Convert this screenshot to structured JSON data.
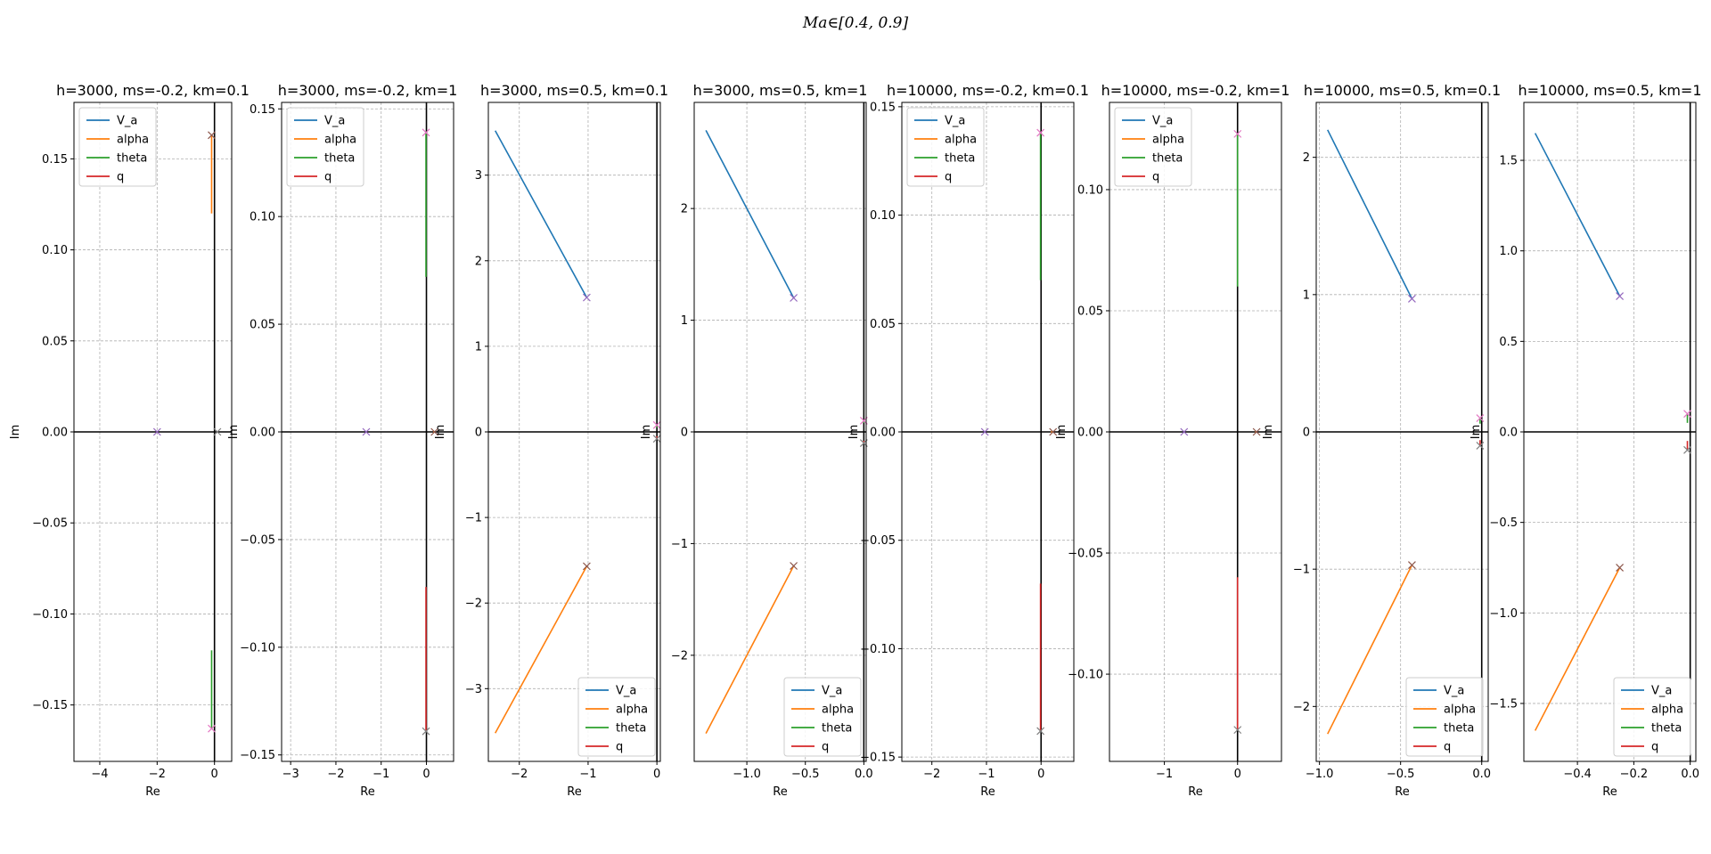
{
  "figure": {
    "suptitle": "Ma∈[0.4, 0.9]"
  },
  "chart_data": [
    {
      "type": "line",
      "title": "h=3000, ms=-0.2, km=0.1",
      "xlabel": "Re",
      "ylabel": "Im",
      "xlim": [
        -4.9,
        0.6
      ],
      "ylim": [
        -0.181,
        0.181
      ],
      "xticks": [
        -4,
        -2,
        0
      ],
      "yticks": [
        -0.15,
        -0.1,
        -0.05,
        0.0,
        0.05,
        0.1,
        0.15
      ],
      "ytick_labels": [
        "−0.15",
        "−0.10",
        "−0.05",
        "0.00",
        "0.05",
        "0.10",
        "0.15"
      ],
      "xtick_labels": [
        "−4",
        "−2",
        "0"
      ],
      "legend_position": "upper left",
      "series": [
        {
          "name": "V_a",
          "color": "#1f77b4",
          "x": [
            -2.02,
            -2.0
          ],
          "y": [
            0.0,
            0.0
          ]
        },
        {
          "name": "alpha",
          "color": "#ff7f0e",
          "x": [
            -0.1,
            -0.1
          ],
          "y": [
            0.12,
            0.163
          ]
        },
        {
          "name": "theta",
          "color": "#2ca02c",
          "x": [
            -0.1,
            -0.1
          ],
          "y": [
            -0.12,
            -0.163
          ]
        },
        {
          "name": "q",
          "color": "#d62728",
          "x": [
            0.12,
            0.1
          ],
          "y": [
            0.0,
            0.0
          ]
        }
      ],
      "markers": [
        {
          "x": -2.0,
          "y": 0.0,
          "color": "#9467bd"
        },
        {
          "x": -0.1,
          "y": 0.163,
          "color": "#8c564b"
        },
        {
          "x": -0.1,
          "y": -0.163,
          "color": "#e377c2"
        },
        {
          "x": 0.1,
          "y": 0.0,
          "color": "#7f7f7f"
        }
      ]
    },
    {
      "type": "line",
      "title": "h=3000, ms=-0.2, km=1",
      "xlabel": "Re",
      "ylabel": "Im",
      "xlim": [
        -3.2,
        0.6
      ],
      "ylim": [
        -0.153,
        0.153
      ],
      "xticks": [
        -3,
        -2,
        -1,
        0
      ],
      "yticks": [
        -0.15,
        -0.1,
        -0.05,
        0.0,
        0.05,
        0.1,
        0.15
      ],
      "ytick_labels": [
        "−0.15",
        "−0.10",
        "−0.05",
        "0.00",
        "0.05",
        "0.10",
        "0.15"
      ],
      "xtick_labels": [
        "−3",
        "−2",
        "−1",
        "0"
      ],
      "legend_position": "upper left",
      "series": [
        {
          "name": "V_a",
          "color": "#1f77b4",
          "x": [
            -1.35,
            -1.33
          ],
          "y": [
            0.0,
            0.0
          ]
        },
        {
          "name": "alpha",
          "color": "#ff7f0e",
          "x": [
            0.15,
            0.18
          ],
          "y": [
            0.0,
            0.0
          ]
        },
        {
          "name": "theta",
          "color": "#2ca02c",
          "x": [
            -0.01,
            -0.01
          ],
          "y": [
            0.072,
            0.139
          ]
        },
        {
          "name": "q",
          "color": "#d62728",
          "x": [
            -0.01,
            -0.01
          ],
          "y": [
            -0.072,
            -0.139
          ]
        }
      ],
      "markers": [
        {
          "x": -1.33,
          "y": 0.0,
          "color": "#9467bd"
        },
        {
          "x": 0.18,
          "y": 0.0,
          "color": "#8c564b"
        },
        {
          "x": -0.01,
          "y": 0.139,
          "color": "#e377c2"
        },
        {
          "x": -0.01,
          "y": -0.139,
          "color": "#7f7f7f"
        }
      ]
    },
    {
      "type": "line",
      "title": "h=3000, ms=0.5, km=0.1",
      "xlabel": "Re",
      "ylabel": "Im",
      "xlim": [
        -2.45,
        0.05
      ],
      "ylim": [
        -3.85,
        3.85
      ],
      "xticks": [
        -2,
        -1,
        0
      ],
      "yticks": [
        -3,
        -2,
        -1,
        0,
        1,
        2,
        3
      ],
      "ytick_labels": [
        "−3",
        "−2",
        "−1",
        "0",
        "1",
        "2",
        "3"
      ],
      "xtick_labels": [
        "−2",
        "−1",
        "0"
      ],
      "legend_position": "lower right",
      "series": [
        {
          "name": "V_a",
          "color": "#1f77b4",
          "x": [
            -2.35,
            -1.02
          ],
          "y": [
            3.52,
            1.57
          ]
        },
        {
          "name": "alpha",
          "color": "#ff7f0e",
          "x": [
            -2.35,
            -1.02
          ],
          "y": [
            -3.52,
            -1.57
          ]
        },
        {
          "name": "theta",
          "color": "#2ca02c",
          "x": [
            0.0,
            0.0
          ],
          "y": [
            0.05,
            0.08
          ]
        },
        {
          "name": "q",
          "color": "#d62728",
          "x": [
            0.0,
            0.0
          ],
          "y": [
            -0.05,
            -0.08
          ]
        }
      ],
      "markers": [
        {
          "x": -1.02,
          "y": 1.57,
          "color": "#9467bd"
        },
        {
          "x": -1.02,
          "y": -1.57,
          "color": "#8c564b"
        },
        {
          "x": 0.0,
          "y": 0.08,
          "color": "#e377c2"
        },
        {
          "x": 0.0,
          "y": -0.08,
          "color": "#7f7f7f"
        }
      ]
    },
    {
      "type": "line",
      "title": "h=3000, ms=0.5, km=1",
      "xlabel": "Re",
      "ylabel": "Im",
      "xlim": [
        -1.45,
        0.02
      ],
      "ylim": [
        -2.95,
        2.95
      ],
      "xticks": [
        -1.0,
        -0.5,
        0.0
      ],
      "yticks": [
        -2,
        -1,
        0,
        1,
        2
      ],
      "ytick_labels": [
        "−2",
        "−1",
        "0",
        "1",
        "2"
      ],
      "xtick_labels": [
        "−1.0",
        "−0.5",
        "0.0"
      ],
      "legend_position": "lower right",
      "series": [
        {
          "name": "V_a",
          "color": "#1f77b4",
          "x": [
            -1.35,
            -0.6
          ],
          "y": [
            2.7,
            1.2
          ]
        },
        {
          "name": "alpha",
          "color": "#ff7f0e",
          "x": [
            -1.35,
            -0.6
          ],
          "y": [
            -2.7,
            -1.2
          ]
        },
        {
          "name": "theta",
          "color": "#2ca02c",
          "x": [
            0.0,
            0.0
          ],
          "y": [
            0.08,
            0.1
          ]
        },
        {
          "name": "q",
          "color": "#d62728",
          "x": [
            0.0,
            0.0
          ],
          "y": [
            -0.08,
            -0.1
          ]
        }
      ],
      "markers": [
        {
          "x": -0.6,
          "y": 1.2,
          "color": "#9467bd"
        },
        {
          "x": -0.6,
          "y": -1.2,
          "color": "#8c564b"
        },
        {
          "x": 0.0,
          "y": 0.1,
          "color": "#e377c2"
        },
        {
          "x": 0.0,
          "y": -0.1,
          "color": "#7f7f7f"
        }
      ]
    },
    {
      "type": "line",
      "title": "h=10000, ms=-0.2, km=0.1",
      "xlabel": "Re",
      "ylabel": "Im",
      "xlim": [
        -2.55,
        0.6
      ],
      "ylim": [
        -0.152,
        0.152
      ],
      "xticks": [
        -2,
        -1,
        0
      ],
      "yticks": [
        -0.15,
        -0.1,
        -0.05,
        0.0,
        0.05,
        0.1,
        0.15
      ],
      "ytick_labels": [
        "−0.15",
        "−0.10",
        "−0.05",
        "0.00",
        "0.05",
        "0.10",
        "0.15"
      ],
      "xtick_labels": [
        "−2",
        "−1",
        "0"
      ],
      "legend_position": "upper left",
      "series": [
        {
          "name": "V_a",
          "color": "#1f77b4",
          "x": [
            -1.05,
            -1.03
          ],
          "y": [
            0.0,
            0.0
          ]
        },
        {
          "name": "alpha",
          "color": "#ff7f0e",
          "x": [
            0.18,
            0.22
          ],
          "y": [
            0.0,
            0.0
          ]
        },
        {
          "name": "theta",
          "color": "#2ca02c",
          "x": [
            -0.01,
            -0.01
          ],
          "y": [
            0.07,
            0.138
          ]
        },
        {
          "name": "q",
          "color": "#d62728",
          "x": [
            -0.01,
            -0.01
          ],
          "y": [
            -0.07,
            -0.138
          ]
        }
      ],
      "markers": [
        {
          "x": -1.03,
          "y": 0.0,
          "color": "#9467bd"
        },
        {
          "x": 0.22,
          "y": 0.0,
          "color": "#8c564b"
        },
        {
          "x": -0.01,
          "y": 0.138,
          "color": "#e377c2"
        },
        {
          "x": -0.01,
          "y": -0.138,
          "color": "#7f7f7f"
        }
      ]
    },
    {
      "type": "line",
      "title": "h=10000, ms=-0.2, km=1",
      "xlabel": "Re",
      "ylabel": "Im",
      "xlim": [
        -1.75,
        0.6
      ],
      "ylim": [
        -0.136,
        0.136
      ],
      "xticks": [
        -1,
        0
      ],
      "yticks": [
        -0.1,
        -0.05,
        0.0,
        0.05,
        0.1
      ],
      "ytick_labels": [
        "−0.10",
        "−0.05",
        "0.00",
        "0.05",
        "0.10"
      ],
      "xtick_labels": [
        "−1",
        "0"
      ],
      "legend_position": "upper left",
      "series": [
        {
          "name": "V_a",
          "color": "#1f77b4",
          "x": [
            -0.74,
            -0.73
          ],
          "y": [
            0.0,
            0.0
          ]
        },
        {
          "name": "alpha",
          "color": "#ff7f0e",
          "x": [
            0.24,
            0.26
          ],
          "y": [
            0.0,
            0.0
          ]
        },
        {
          "name": "theta",
          "color": "#2ca02c",
          "x": [
            0.0,
            0.0
          ],
          "y": [
            0.06,
            0.123
          ]
        },
        {
          "name": "q",
          "color": "#d62728",
          "x": [
            0.0,
            0.0
          ],
          "y": [
            -0.06,
            -0.123
          ]
        }
      ],
      "markers": [
        {
          "x": -0.73,
          "y": 0.0,
          "color": "#9467bd"
        },
        {
          "x": 0.26,
          "y": 0.0,
          "color": "#8c564b"
        },
        {
          "x": 0.0,
          "y": 0.123,
          "color": "#e377c2"
        },
        {
          "x": 0.0,
          "y": -0.123,
          "color": "#7f7f7f"
        }
      ]
    },
    {
      "type": "line",
      "title": "h=10000, ms=0.5, km=0.1",
      "xlabel": "Re",
      "ylabel": "Im",
      "xlim": [
        -1.02,
        0.04
      ],
      "ylim": [
        -2.4,
        2.4
      ],
      "xticks": [
        -1.0,
        -0.5,
        0.0
      ],
      "yticks": [
        -2,
        -1,
        0,
        1,
        2
      ],
      "ytick_labels": [
        "−2",
        "−1",
        "0",
        "1",
        "2"
      ],
      "xtick_labels": [
        "−1.0",
        "−0.5",
        "0.0"
      ],
      "legend_position": "lower right",
      "series": [
        {
          "name": "V_a",
          "color": "#1f77b4",
          "x": [
            -0.95,
            -0.43
          ],
          "y": [
            2.2,
            0.97
          ]
        },
        {
          "name": "alpha",
          "color": "#ff7f0e",
          "x": [
            -0.95,
            -0.43
          ],
          "y": [
            -2.2,
            -0.97
          ]
        },
        {
          "name": "theta",
          "color": "#2ca02c",
          "x": [
            -0.01,
            -0.01
          ],
          "y": [
            0.06,
            0.1
          ]
        },
        {
          "name": "q",
          "color": "#d62728",
          "x": [
            -0.01,
            -0.01
          ],
          "y": [
            -0.06,
            -0.1
          ]
        }
      ],
      "markers": [
        {
          "x": -0.43,
          "y": 0.97,
          "color": "#9467bd"
        },
        {
          "x": -0.43,
          "y": -0.97,
          "color": "#8c564b"
        },
        {
          "x": -0.01,
          "y": 0.1,
          "color": "#e377c2"
        },
        {
          "x": -0.01,
          "y": -0.1,
          "color": "#7f7f7f"
        }
      ]
    },
    {
      "type": "line",
      "title": "h=10000, ms=0.5, km=1",
      "xlabel": "Re",
      "ylabel": "Im",
      "xlim": [
        -0.59,
        0.02
      ],
      "ylim": [
        -1.82,
        1.82
      ],
      "xticks": [
        -0.4,
        -0.2,
        0.0
      ],
      "yticks": [
        -1.5,
        -1.0,
        -0.5,
        0.0,
        0.5,
        1.0,
        1.5
      ],
      "ytick_labels": [
        "−1.5",
        "−1.0",
        "−0.5",
        "0.0",
        "0.5",
        "1.0",
        "1.5"
      ],
      "xtick_labels": [
        "−0.4",
        "−0.2",
        "0.0"
      ],
      "legend_position": "lower right",
      "series": [
        {
          "name": "V_a",
          "color": "#1f77b4",
          "x": [
            -0.55,
            -0.25
          ],
          "y": [
            1.65,
            0.75
          ]
        },
        {
          "name": "alpha",
          "color": "#ff7f0e",
          "x": [
            -0.55,
            -0.25
          ],
          "y": [
            -1.65,
            -0.75
          ]
        },
        {
          "name": "theta",
          "color": "#2ca02c",
          "x": [
            -0.01,
            -0.01
          ],
          "y": [
            0.05,
            0.1
          ]
        },
        {
          "name": "q",
          "color": "#d62728",
          "x": [
            -0.01,
            -0.01
          ],
          "y": [
            -0.05,
            -0.1
          ]
        }
      ],
      "markers": [
        {
          "x": -0.25,
          "y": 0.75,
          "color": "#9467bd"
        },
        {
          "x": -0.25,
          "y": -0.75,
          "color": "#8c564b"
        },
        {
          "x": -0.01,
          "y": 0.1,
          "color": "#e377c2"
        },
        {
          "x": -0.01,
          "y": -0.1,
          "color": "#7f7f7f"
        }
      ]
    }
  ]
}
